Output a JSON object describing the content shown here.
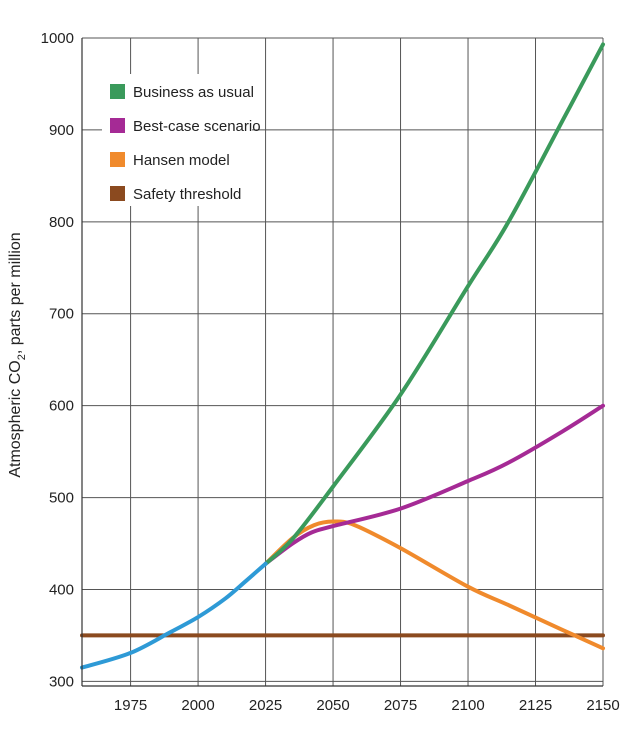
{
  "chart_data": {
    "type": "line",
    "title": "",
    "xlabel": "",
    "ylabel": "Atmospheric CO",
    "ylabel_subscript": "2",
    "ylabel_suffix": ", parts per million",
    "xlim": [
      1957,
      2150
    ],
    "ylim": [
      295,
      1000
    ],
    "x_ticks": [
      1975,
      2000,
      2025,
      2050,
      2075,
      2100,
      2125,
      2150
    ],
    "y_ticks": [
      300,
      400,
      500,
      600,
      700,
      800,
      900,
      1000
    ],
    "grid": true,
    "legend": "top-left",
    "series": [
      {
        "name": "Business as usual",
        "color": "#3a9a5b",
        "x": [
          2025,
          2035,
          2050,
          2075,
          2100,
          2115,
          2135,
          2150
        ],
        "y": [
          428,
          455,
          512,
          612,
          730,
          800,
          910,
          993
        ]
      },
      {
        "name": "Best-case scenario",
        "color": "#a52a95",
        "x": [
          2025,
          2035,
          2042,
          2050,
          2075,
          2100,
          2115,
          2135,
          2150
        ],
        "y": [
          428,
          450,
          462,
          469,
          488,
          518,
          538,
          572,
          600
        ]
      },
      {
        "name": "Hansen model",
        "color": "#f08a2c",
        "x": [
          2025,
          2035,
          2043,
          2050,
          2058,
          2075,
          2100,
          2115,
          2135,
          2150
        ],
        "y": [
          428,
          456,
          470,
          474,
          470,
          445,
          403,
          383,
          356,
          336
        ]
      },
      {
        "name": "Safety threshold",
        "color": "#8b4a1f",
        "x": [
          1957,
          2150
        ],
        "y": [
          350,
          350
        ]
      },
      {
        "name": "",
        "color": "#2e9ad6",
        "x": [
          1957,
          1975,
          1990,
          2000,
          2010,
          2018,
          2025
        ],
        "y": [
          315,
          331,
          354,
          370,
          390,
          410,
          428
        ]
      }
    ]
  }
}
